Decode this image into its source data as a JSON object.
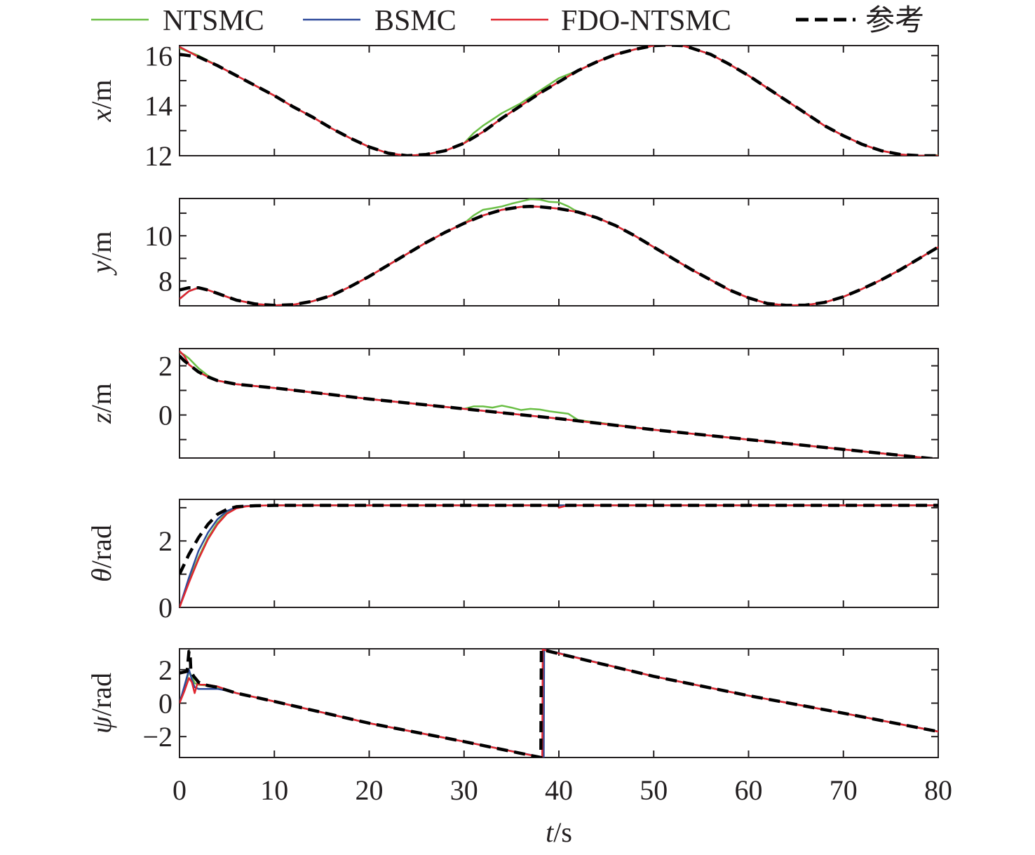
{
  "chart_data": {
    "type": "line",
    "legend": {
      "placement": "top",
      "entries": [
        {
          "name": "NTSMC",
          "color": "#6abf45",
          "dash": false
        },
        {
          "name": "BSMC",
          "color": "#2e4b9b",
          "dash": false
        },
        {
          "name": "FDO-NTSMC",
          "color": "#e0262f",
          "dash": false
        },
        {
          "name": "参考",
          "color": "#000000",
          "dash": true
        }
      ]
    },
    "xlabel_var": "t",
    "xlabel_unit": "/s",
    "xlim": [
      0,
      80
    ],
    "xticks": [
      0,
      10,
      20,
      30,
      40,
      50,
      60,
      70,
      80
    ],
    "grid": false,
    "panels": [
      {
        "id": "x",
        "ylabel_var": "x",
        "ylabel_unit": "/m",
        "ylim": [
          12,
          16.4
        ],
        "yticks": [
          12,
          14,
          16
        ],
        "ytick_labels": [
          "12",
          "14",
          "16"
        ],
        "minor_yticks": [
          13,
          15
        ],
        "reference": {
          "x": [
            0,
            1,
            2,
            4,
            6,
            8,
            10,
            12,
            14,
            16,
            18,
            20,
            22,
            24,
            26,
            28,
            30,
            32,
            34,
            36,
            38,
            40,
            42,
            44,
            46,
            48,
            50,
            51.5,
            53,
            54,
            56,
            58,
            60,
            62,
            64,
            66,
            68,
            70,
            72,
            74,
            76,
            78,
            79,
            80
          ],
          "y": [
            16.05,
            16.0,
            15.95,
            15.6,
            15.2,
            14.8,
            14.4,
            13.95,
            13.55,
            13.1,
            12.7,
            12.35,
            12.1,
            12.0,
            12.05,
            12.2,
            12.5,
            12.95,
            13.5,
            14.0,
            14.5,
            14.95,
            15.4,
            15.75,
            16.05,
            16.25,
            16.4,
            16.42,
            16.4,
            16.3,
            16.05,
            15.65,
            15.2,
            14.7,
            14.2,
            13.7,
            13.2,
            12.8,
            12.45,
            12.2,
            12.05,
            12.0,
            12.0,
            12.0
          ]
        },
        "ntsmc": {
          "x": [
            0,
            1,
            2,
            4,
            6,
            8,
            10,
            12,
            14,
            16,
            18,
            20,
            22,
            24,
            26,
            28,
            30,
            31,
            32,
            33,
            34,
            35,
            36,
            37,
            38,
            39,
            40,
            41,
            42,
            44,
            46,
            48,
            50,
            51.5,
            53,
            54,
            56,
            58,
            60,
            62,
            64,
            66,
            68,
            70,
            72,
            74,
            76,
            78,
            79,
            80
          ],
          "y": [
            16.3,
            16.15,
            16.0,
            15.6,
            15.2,
            14.8,
            14.4,
            13.95,
            13.55,
            13.1,
            12.7,
            12.35,
            12.1,
            12.0,
            12.05,
            12.2,
            12.5,
            12.9,
            13.2,
            13.45,
            13.7,
            13.9,
            14.1,
            14.35,
            14.6,
            14.85,
            15.1,
            15.25,
            15.4,
            15.75,
            16.05,
            16.25,
            16.4,
            16.42,
            16.4,
            16.3,
            16.05,
            15.65,
            15.2,
            14.7,
            14.2,
            13.7,
            13.2,
            12.8,
            12.45,
            12.2,
            12.05,
            12.0,
            12.0,
            12.02
          ]
        },
        "bsmc_offset": 0.0,
        "fdo_init": [
          16.35,
          16.15
        ]
      },
      {
        "id": "y",
        "ylabel_var": "y",
        "ylabel_unit": "/m",
        "ylim": [
          6.9,
          11.65
        ],
        "yticks": [
          8,
          10
        ],
        "ytick_labels": [
          "8",
          "10"
        ],
        "minor_yticks": [
          9,
          11
        ],
        "reference": {
          "x": [
            0,
            1,
            2,
            3,
            4,
            6,
            8,
            10,
            12,
            14,
            16,
            18,
            20,
            22,
            24,
            26,
            28,
            30,
            32,
            34,
            36,
            37,
            38,
            40,
            42,
            44,
            46,
            48,
            50,
            52,
            54,
            56,
            58,
            60,
            62,
            64,
            66,
            68,
            70,
            72,
            74,
            76,
            78,
            80
          ],
          "y": [
            7.6,
            7.7,
            7.7,
            7.6,
            7.45,
            7.15,
            6.98,
            6.92,
            6.95,
            7.1,
            7.35,
            7.75,
            8.2,
            8.7,
            9.2,
            9.7,
            10.15,
            10.55,
            10.9,
            11.15,
            11.28,
            11.3,
            11.28,
            11.2,
            11.05,
            10.8,
            10.45,
            10.0,
            9.5,
            9.0,
            8.5,
            8.05,
            7.6,
            7.25,
            7.0,
            6.92,
            6.93,
            7.05,
            7.3,
            7.65,
            8.05,
            8.5,
            9.0,
            9.5
          ]
        },
        "ntsmc": {
          "x": [
            0,
            1,
            2,
            3,
            4,
            6,
            8,
            10,
            12,
            14,
            16,
            18,
            20,
            22,
            24,
            26,
            28,
            30,
            31,
            32,
            33,
            34,
            35,
            36,
            37,
            38,
            39,
            40,
            41,
            42,
            44,
            46,
            48,
            50,
            52,
            54,
            56,
            58,
            60,
            62,
            64,
            66,
            68,
            70,
            72,
            74,
            76,
            78,
            80
          ],
          "y": [
            7.2,
            7.55,
            7.7,
            7.6,
            7.45,
            7.15,
            6.98,
            6.92,
            6.95,
            7.1,
            7.35,
            7.75,
            8.2,
            8.7,
            9.2,
            9.7,
            10.15,
            10.55,
            10.9,
            11.15,
            11.22,
            11.3,
            11.42,
            11.52,
            11.62,
            11.6,
            11.5,
            11.48,
            11.3,
            11.05,
            10.8,
            10.45,
            10.0,
            9.5,
            9.0,
            8.5,
            8.05,
            7.6,
            7.25,
            7.0,
            6.92,
            6.93,
            7.05,
            7.3,
            7.65,
            8.05,
            8.5,
            9.0,
            9.5
          ]
        },
        "bsmc_offset": 0.0,
        "fdo_init": [
          7.2,
          7.55
        ]
      },
      {
        "id": "z",
        "ylabel_var": "z",
        "ylabel_unit": "/m",
        "ylim": [
          -1.75,
          2.7
        ],
        "yticks": [
          0,
          2
        ],
        "ytick_labels": [
          "0",
          "2"
        ],
        "minor_yticks": [
          -1,
          1
        ],
        "reference": {
          "x": [
            0,
            0.5,
            1,
            2,
            3,
            4,
            6,
            10,
            20,
            30,
            40,
            50,
            60,
            70,
            80
          ],
          "y": [
            2.4,
            2.2,
            2.05,
            1.75,
            1.55,
            1.4,
            1.25,
            1.1,
            0.65,
            0.25,
            -0.15,
            -0.6,
            -1.0,
            -1.4,
            -1.8
          ]
        },
        "ntsmc": {
          "x": [
            0,
            0.5,
            1,
            2,
            3,
            4,
            6,
            10,
            20,
            30,
            31,
            32,
            33,
            34,
            35,
            36,
            37,
            38,
            39,
            40,
            41,
            42,
            50,
            60,
            70,
            80
          ],
          "y": [
            2.55,
            2.45,
            2.3,
            1.9,
            1.6,
            1.4,
            1.25,
            1.1,
            0.65,
            0.25,
            0.35,
            0.35,
            0.3,
            0.38,
            0.3,
            0.2,
            0.25,
            0.22,
            0.15,
            0.1,
            0.05,
            -0.2,
            -0.6,
            -1.0,
            -1.4,
            -1.8
          ]
        },
        "bsmc_offset": 0.0,
        "fdo_init": [
          2.6,
          2.4
        ]
      },
      {
        "id": "theta",
        "ylabel_var": "θ",
        "ylabel_unit": "/rad",
        "ylim": [
          0,
          3.25
        ],
        "yticks": [
          0,
          2
        ],
        "ytick_labels": [
          "0",
          "2"
        ],
        "minor_yticks": [
          1,
          3
        ],
        "reference": {
          "x": [
            0,
            0.5,
            1,
            2,
            3,
            4,
            5,
            6,
            8,
            10,
            20,
            40,
            60,
            80
          ],
          "y": [
            1.0,
            1.3,
            1.6,
            2.1,
            2.5,
            2.8,
            2.95,
            3.03,
            3.06,
            3.07,
            3.07,
            3.07,
            3.07,
            3.07
          ]
        },
        "ntsmc": {
          "x": [
            0,
            1,
            2,
            3,
            4,
            5,
            6,
            7,
            8,
            10,
            20,
            40,
            60,
            80
          ],
          "y": [
            0.0,
            0.8,
            1.5,
            2.1,
            2.55,
            2.85,
            3.0,
            3.05,
            3.06,
            3.07,
            3.07,
            3.07,
            3.07,
            3.07
          ]
        },
        "bsmc": {
          "x": [
            0,
            1,
            2,
            3,
            4,
            5,
            6,
            7,
            8,
            10,
            20,
            40,
            60,
            80
          ],
          "y": [
            0.0,
            0.9,
            1.7,
            2.25,
            2.65,
            2.9,
            3.02,
            3.05,
            3.06,
            3.07,
            3.07,
            3.07,
            3.07,
            3.07
          ]
        },
        "fdo": {
          "x": [
            0,
            1,
            2,
            3,
            4,
            5,
            6,
            7,
            8,
            10,
            20,
            39.9,
            40,
            40.5,
            41,
            60,
            80
          ],
          "y": [
            0.0,
            0.75,
            1.45,
            2.05,
            2.5,
            2.82,
            2.98,
            3.04,
            3.06,
            3.07,
            3.07,
            3.07,
            3.0,
            3.04,
            3.07,
            3.07,
            3.07
          ]
        }
      },
      {
        "id": "psi",
        "ylabel_var": "ψ",
        "ylabel_unit": "/rad",
        "ylim": [
          -3.25,
          3.25
        ],
        "yticks": [
          -2,
          0,
          2
        ],
        "ytick_labels": [
          "−2",
          "0",
          "2"
        ],
        "minor_yticks": [],
        "reference": {
          "x": [
            0,
            0.8,
            1.0,
            1.1,
            1.2,
            1.5,
            2,
            3,
            4,
            6,
            10,
            20,
            30,
            38.1,
            38.15,
            38.2,
            50,
            60,
            70,
            80
          ],
          "y": [
            1.8,
            1.9,
            3.1,
            3.1,
            1.9,
            1.6,
            1.25,
            1.05,
            0.95,
            0.6,
            0.1,
            -1.2,
            -2.3,
            -3.25,
            3.2,
            3.2,
            1.6,
            0.45,
            -0.6,
            -1.7
          ]
        },
        "ntsmc": {
          "x": [
            0,
            0.5,
            1,
            1.3,
            1.6,
            2,
            3,
            4,
            5,
            6,
            10,
            20,
            30,
            38.3,
            38.35,
            38.4,
            50,
            60,
            70,
            80
          ],
          "y": [
            0.0,
            0.9,
            1.9,
            1.6,
            1.2,
            1.1,
            1.05,
            0.95,
            0.8,
            0.6,
            0.1,
            -1.2,
            -2.3,
            -3.25,
            3.2,
            3.2,
            1.6,
            0.45,
            -0.6,
            -1.7
          ]
        },
        "bsmc": {
          "x": [
            0,
            0.5,
            1,
            1.3,
            1.6,
            2,
            3,
            4,
            5,
            6,
            10,
            20,
            30,
            38.4,
            38.45,
            38.5,
            50,
            60,
            70,
            80
          ],
          "y": [
            0.0,
            1.0,
            2.0,
            1.4,
            0.95,
            0.85,
            0.85,
            0.85,
            0.75,
            0.6,
            0.1,
            -1.2,
            -2.3,
            -3.25,
            3.2,
            3.2,
            1.6,
            0.45,
            -0.6,
            -1.7
          ]
        },
        "fdo": {
          "x": [
            0,
            0.5,
            1,
            1.3,
            1.6,
            1.9,
            2.2,
            3,
            4,
            5,
            6,
            10,
            20,
            30,
            38.25,
            38.3,
            38.35,
            50,
            60,
            70,
            80
          ],
          "y": [
            0.0,
            0.7,
            1.5,
            1.25,
            0.6,
            1.2,
            1.1,
            1.1,
            1.0,
            0.8,
            0.6,
            0.1,
            -1.2,
            -2.3,
            -3.25,
            3.2,
            3.2,
            1.6,
            0.45,
            -0.6,
            -1.7
          ]
        }
      }
    ]
  }
}
